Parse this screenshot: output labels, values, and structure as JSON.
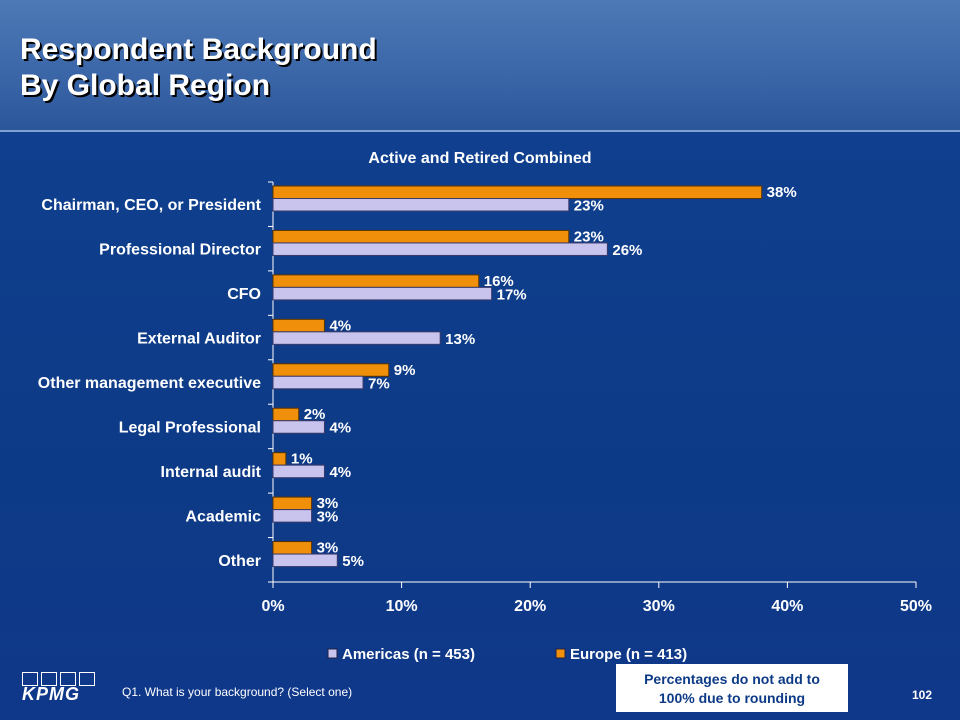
{
  "header": {
    "title_line1": "Respondent Background",
    "title_line2": "By Global Region"
  },
  "chart_data": {
    "type": "bar",
    "orientation": "horizontal",
    "title": "Active and Retired Combined",
    "categories": [
      "Chairman, CEO, or President",
      "Professional Director",
      "CFO",
      "External Auditor",
      "Other management executive",
      "Legal Professional",
      "Internal audit",
      "Academic",
      "Other"
    ],
    "series": [
      {
        "name": "Europe (n = 413)",
        "color": "#f0900a",
        "values": [
          38,
          23,
          16,
          4,
          9,
          2,
          1,
          3,
          3
        ]
      },
      {
        "name": "Americas (n = 453)",
        "color": "#c8c4ee",
        "values": [
          23,
          26,
          17,
          13,
          7,
          4,
          4,
          3,
          5
        ]
      }
    ],
    "value_labels": {
      "Europe (n = 413)": [
        "38%",
        "23%",
        "16%",
        "4%",
        "9%",
        "2%",
        "1%",
        "3%",
        "3%"
      ],
      "Americas (n = 453)": [
        "23%",
        "26%",
        "17%",
        "13%",
        "7%",
        "4%",
        "4%",
        "3%",
        "5%"
      ]
    },
    "xlim": [
      0,
      50
    ],
    "x_ticks": [
      "0%",
      "10%",
      "20%",
      "30%",
      "40%",
      "50%"
    ],
    "legend": [
      "Americas (n = 453)",
      "Europe (n = 413)"
    ],
    "legend_position": "bottom",
    "grid": false
  },
  "footer": {
    "question": "Q1. What is your background? (Select one)",
    "note_line1": "Percentages do not add to",
    "note_line2": "100% due to rounding",
    "page_number": "102",
    "logo_text": "KPMG"
  }
}
